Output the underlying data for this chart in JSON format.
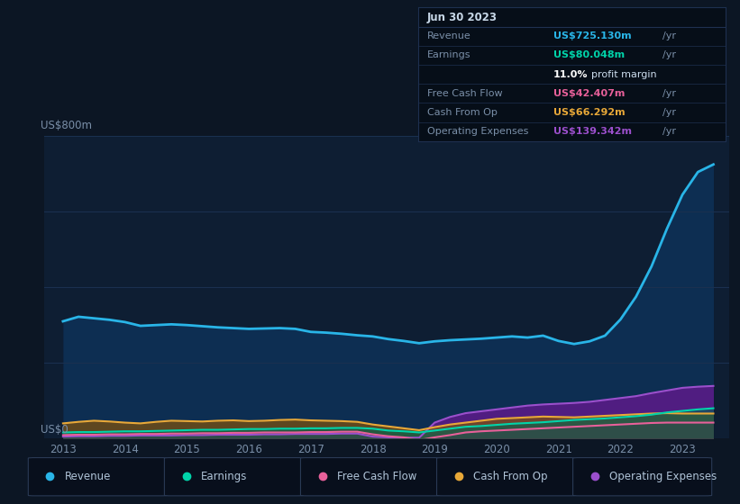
{
  "bg_color": "#0c1624",
  "plot_bg": "#0e1e33",
  "upper_bg": "#0c1624",
  "y_label_top": "US$800m",
  "y_label_bottom": "US$0",
  "x_years": [
    2013.0,
    2013.25,
    2013.5,
    2013.75,
    2014.0,
    2014.25,
    2014.5,
    2014.75,
    2015.0,
    2015.25,
    2015.5,
    2015.75,
    2016.0,
    2016.25,
    2016.5,
    2016.75,
    2017.0,
    2017.25,
    2017.5,
    2017.75,
    2018.0,
    2018.25,
    2018.5,
    2018.75,
    2019.0,
    2019.25,
    2019.5,
    2019.75,
    2020.0,
    2020.25,
    2020.5,
    2020.75,
    2021.0,
    2021.25,
    2021.5,
    2021.75,
    2022.0,
    2022.25,
    2022.5,
    2022.75,
    2023.0,
    2023.25,
    2023.5
  ],
  "revenue": [
    310,
    322,
    318,
    314,
    308,
    298,
    300,
    302,
    300,
    297,
    294,
    292,
    290,
    291,
    292,
    290,
    282,
    280,
    277,
    273,
    270,
    263,
    258,
    252,
    257,
    260,
    262,
    264,
    267,
    270,
    267,
    272,
    258,
    250,
    257,
    272,
    315,
    375,
    455,
    555,
    645,
    705,
    725
  ],
  "earnings": [
    16,
    17,
    17,
    18,
    19,
    19,
    20,
    21,
    22,
    23,
    23,
    24,
    25,
    25,
    26,
    26,
    27,
    27,
    28,
    28,
    26,
    21,
    19,
    16,
    21,
    26,
    31,
    33,
    36,
    39,
    41,
    43,
    46,
    49,
    51,
    53,
    56,
    59,
    63,
    69,
    73,
    77,
    80
  ],
  "free_cash_flow": [
    9,
    10,
    10,
    11,
    11,
    12,
    12,
    13,
    13,
    14,
    14,
    15,
    15,
    16,
    16,
    16,
    17,
    17,
    18,
    18,
    11,
    6,
    3,
    -4,
    3,
    9,
    16,
    19,
    21,
    23,
    25,
    27,
    29,
    31,
    33,
    35,
    37,
    39,
    41,
    42,
    42,
    42,
    42
  ],
  "cash_from_op": [
    40,
    44,
    47,
    45,
    42,
    40,
    44,
    47,
    46,
    45,
    47,
    48,
    46,
    47,
    49,
    50,
    48,
    47,
    46,
    44,
    37,
    32,
    27,
    22,
    30,
    37,
    42,
    47,
    52,
    54,
    56,
    58,
    57,
    56,
    58,
    60,
    62,
    64,
    66,
    67,
    66,
    66,
    66
  ],
  "operating_expenses": [
    5,
    6,
    6,
    7,
    7,
    8,
    8,
    8,
    9,
    9,
    10,
    10,
    10,
    11,
    11,
    12,
    12,
    12,
    13,
    13,
    5,
    3,
    2,
    2,
    42,
    57,
    67,
    72,
    77,
    82,
    87,
    90,
    92,
    94,
    97,
    102,
    107,
    112,
    120,
    127,
    134,
    137,
    139
  ],
  "revenue_color": "#29b5e8",
  "revenue_fill": "#0d2e52",
  "earnings_color": "#00d4aa",
  "earnings_fill": "#00d4aa",
  "fcf_color": "#e8609a",
  "fcf_fill": "#e8609a",
  "cfop_color": "#e8a838",
  "cfop_fill": "#7a5010",
  "opex_color": "#9b4fcc",
  "opex_fill": "#5c1a8a",
  "ylim": [
    0,
    800
  ],
  "xlim": [
    2012.7,
    2023.75
  ],
  "grid_color": "#1a3050",
  "tick_color": "#7a8fa8",
  "tooltip": {
    "date": "Jun 30 2023",
    "revenue_label": "Revenue",
    "revenue_value": "US$725.130m",
    "revenue_color": "#29b5e8",
    "earnings_label": "Earnings",
    "earnings_value": "US$80.048m",
    "earnings_color": "#00d4aa",
    "fcf_label": "Free Cash Flow",
    "fcf_value": "US$42.407m",
    "fcf_color": "#e8609a",
    "cfop_label": "Cash From Op",
    "cfop_value": "US$66.292m",
    "cfop_color": "#e8a838",
    "opex_label": "Operating Expenses",
    "opex_value": "US$139.342m",
    "opex_color": "#9b4fcc",
    "label_color": "#7a8fa8",
    "bg_color": "#060e18",
    "border_color": "#1e3050",
    "header_color": "#c8d8e8"
  },
  "legend": [
    {
      "label": "Revenue",
      "color": "#29b5e8"
    },
    {
      "label": "Earnings",
      "color": "#00d4aa"
    },
    {
      "label": "Free Cash Flow",
      "color": "#e8609a"
    },
    {
      "label": "Cash From Op",
      "color": "#e8a838"
    },
    {
      "label": "Operating Expenses",
      "color": "#9b4fcc"
    }
  ]
}
